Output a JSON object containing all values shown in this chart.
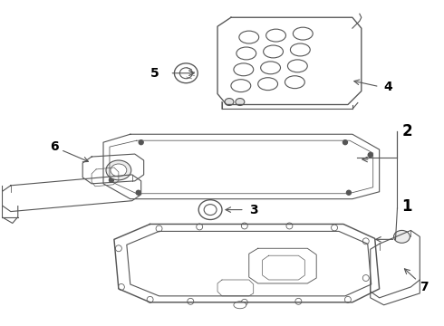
{
  "background_color": "#ffffff",
  "line_color": "#555555",
  "label_color": "#000000",
  "figsize": [
    4.9,
    3.6
  ],
  "dpi": 100,
  "parts": {
    "part4_label": "4",
    "part5_label": "5",
    "part2_label": "2",
    "part1_label": "1",
    "part3_label": "3",
    "part6_label": "6",
    "part7_label": "7"
  }
}
